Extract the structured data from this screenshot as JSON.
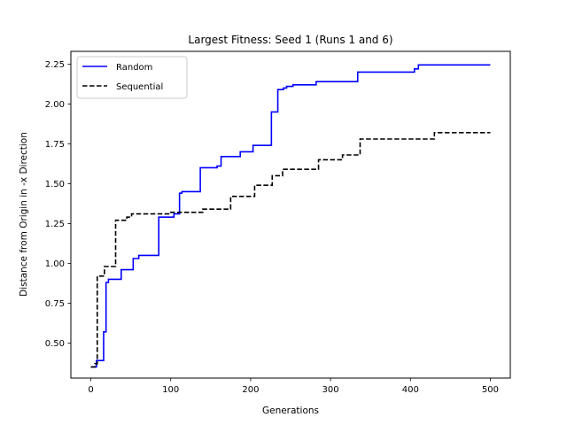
{
  "chart_data": {
    "type": "line",
    "title": "Largest Fitness: Seed 1 (Runs 1 and 6)",
    "xlabel": "Generations",
    "ylabel": "Distance from Origin in -x Direction",
    "xlim": [
      -25,
      525
    ],
    "ylim": [
      0.28,
      2.33
    ],
    "xticks": [
      0,
      100,
      200,
      300,
      400,
      500
    ],
    "xtick_labels": [
      "0",
      "100",
      "200",
      "300",
      "400",
      "500"
    ],
    "yticks": [
      0.5,
      0.75,
      1.0,
      1.25,
      1.5,
      1.75,
      2.0,
      2.25
    ],
    "ytick_labels": [
      "0.50",
      "0.75",
      "1.00",
      "1.25",
      "1.50",
      "1.75",
      "2.00",
      "2.25"
    ],
    "grid": false,
    "legend": "upper-left",
    "series": [
      {
        "name": "Random",
        "color": "#0000ff",
        "style": "solid",
        "step_points": [
          [
            0,
            0.35
          ],
          [
            7,
            0.39
          ],
          [
            16,
            0.57
          ],
          [
            19,
            0.88
          ],
          [
            22,
            0.9
          ],
          [
            38,
            0.96
          ],
          [
            53,
            1.03
          ],
          [
            60,
            1.05
          ],
          [
            85,
            1.29
          ],
          [
            104,
            1.31
          ],
          [
            111,
            1.44
          ],
          [
            114,
            1.45
          ],
          [
            137,
            1.6
          ],
          [
            158,
            1.61
          ],
          [
            163,
            1.67
          ],
          [
            187,
            1.7
          ],
          [
            203,
            1.74
          ],
          [
            226,
            1.95
          ],
          [
            234,
            2.09
          ],
          [
            241,
            2.1
          ],
          [
            245,
            2.11
          ],
          [
            253,
            2.12
          ],
          [
            282,
            2.14
          ],
          [
            334,
            2.2
          ],
          [
            405,
            2.22
          ],
          [
            410,
            2.245
          ],
          [
            500,
            2.245
          ]
        ]
      },
      {
        "name": "Sequential",
        "color": "#000000",
        "style": "dashed",
        "step_points": [
          [
            0,
            0.35
          ],
          [
            5,
            0.37
          ],
          [
            8,
            0.92
          ],
          [
            17,
            0.98
          ],
          [
            31,
            1.27
          ],
          [
            45,
            1.29
          ],
          [
            51,
            1.31
          ],
          [
            100,
            1.32
          ],
          [
            140,
            1.34
          ],
          [
            175,
            1.42
          ],
          [
            205,
            1.49
          ],
          [
            227,
            1.55
          ],
          [
            240,
            1.59
          ],
          [
            285,
            1.65
          ],
          [
            315,
            1.68
          ],
          [
            337,
            1.78
          ],
          [
            430,
            1.82
          ],
          [
            500,
            1.82
          ]
        ]
      }
    ]
  }
}
